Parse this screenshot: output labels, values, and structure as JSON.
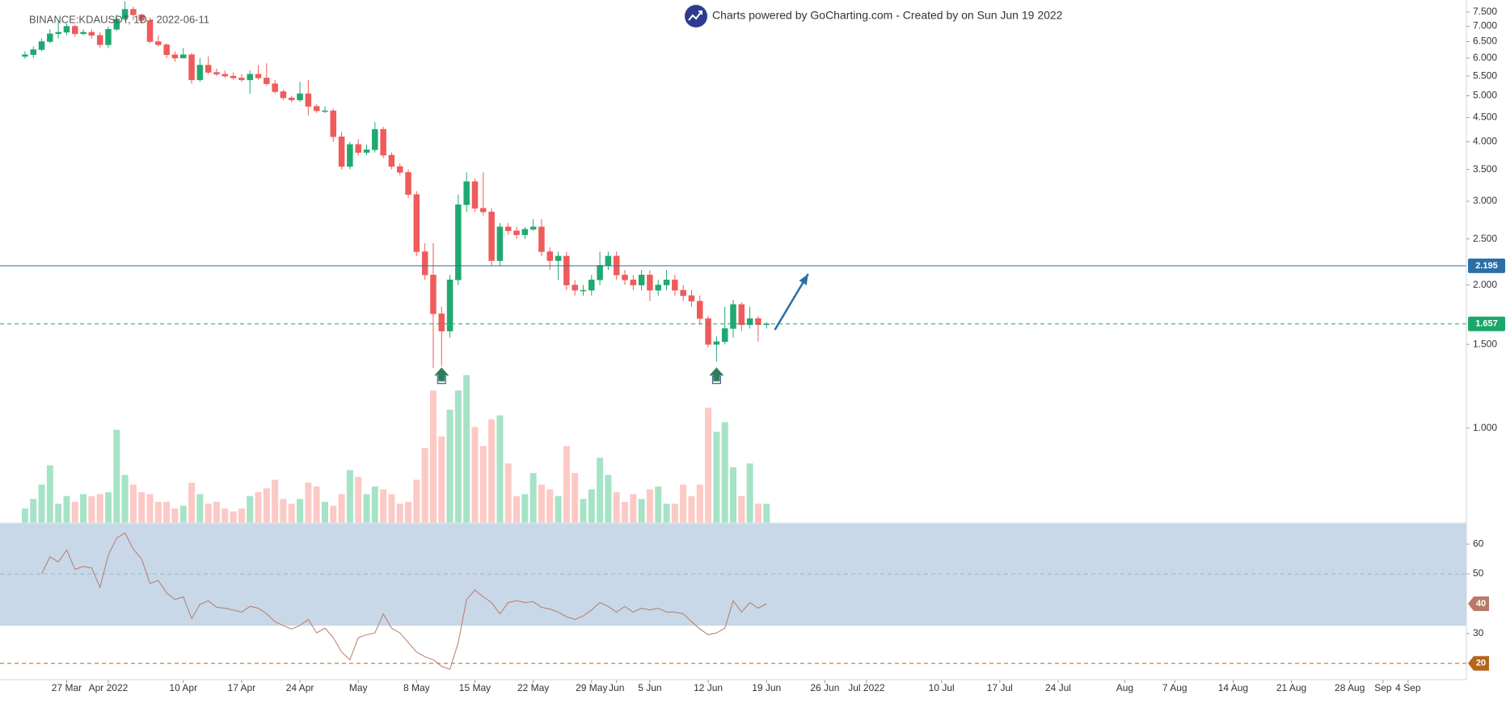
{
  "header": {
    "symbol": "BINANCE:KDAUSDT, 1D - 2022-06-11",
    "credit": "Charts powered by GoCharting.com - Created by  on Sun Jun 19 2022"
  },
  "chart_data": [
    {
      "type": "candlestick",
      "log_scale": true,
      "up_color": "#1fa971",
      "down_color": "#ef5b5b",
      "x": [
        "2022-03-22",
        "2022-03-23",
        "2022-03-24",
        "2022-03-25",
        "2022-03-26",
        "2022-03-27",
        "2022-03-28",
        "2022-03-29",
        "2022-03-30",
        "2022-03-31",
        "2022-04-01",
        "2022-04-02",
        "2022-04-03",
        "2022-04-04",
        "2022-04-05",
        "2022-04-06",
        "2022-04-07",
        "2022-04-08",
        "2022-04-09",
        "2022-04-10",
        "2022-04-11",
        "2022-04-12",
        "2022-04-13",
        "2022-04-14",
        "2022-04-15",
        "2022-04-16",
        "2022-04-17",
        "2022-04-18",
        "2022-04-19",
        "2022-04-20",
        "2022-04-21",
        "2022-04-22",
        "2022-04-23",
        "2022-04-24",
        "2022-04-25",
        "2022-04-26",
        "2022-04-27",
        "2022-04-28",
        "2022-04-29",
        "2022-04-30",
        "2022-05-01",
        "2022-05-02",
        "2022-05-03",
        "2022-05-04",
        "2022-05-05",
        "2022-05-06",
        "2022-05-07",
        "2022-05-08",
        "2022-05-09",
        "2022-05-10",
        "2022-05-11",
        "2022-05-12",
        "2022-05-13",
        "2022-05-14",
        "2022-05-15",
        "2022-05-16",
        "2022-05-17",
        "2022-05-18",
        "2022-05-19",
        "2022-05-20",
        "2022-05-21",
        "2022-05-22",
        "2022-05-23",
        "2022-05-24",
        "2022-05-25",
        "2022-05-26",
        "2022-05-27",
        "2022-05-28",
        "2022-05-29",
        "2022-05-30",
        "2022-05-31",
        "2022-06-01",
        "2022-06-02",
        "2022-06-03",
        "2022-06-04",
        "2022-06-05",
        "2022-06-06",
        "2022-06-07",
        "2022-06-08",
        "2022-06-09",
        "2022-06-10",
        "2022-06-11",
        "2022-06-12",
        "2022-06-13",
        "2022-06-14",
        "2022-06-15",
        "2022-06-16",
        "2022-06-17",
        "2022-06-18",
        "2022-06-19"
      ],
      "open": [
        6.05,
        6.1,
        6.25,
        6.5,
        6.75,
        6.8,
        7.0,
        6.75,
        6.8,
        6.7,
        6.4,
        6.9,
        7.25,
        7.6,
        7.4,
        7.2,
        6.5,
        6.4,
        6.1,
        6.0,
        6.1,
        5.4,
        5.8,
        5.6,
        5.55,
        5.5,
        5.45,
        5.4,
        5.55,
        5.45,
        5.3,
        5.1,
        4.95,
        4.9,
        5.05,
        4.75,
        4.65,
        4.65,
        4.1,
        3.55,
        3.95,
        3.8,
        3.85,
        4.25,
        3.75,
        3.55,
        3.45,
        3.1,
        2.35,
        2.1,
        1.74,
        1.6,
        2.05,
        2.95,
        3.3,
        2.9,
        2.85,
        2.25,
        2.65,
        2.6,
        2.55,
        2.62,
        2.65,
        2.35,
        2.25,
        2.3,
        2.0,
        1.95,
        1.95,
        2.05,
        2.2,
        2.3,
        2.1,
        2.05,
        2.0,
        2.1,
        1.95,
        2.0,
        2.05,
        1.95,
        1.9,
        1.85,
        1.7,
        1.5,
        1.52,
        1.62,
        1.82,
        1.65,
        1.7,
        1.65
      ],
      "high": [
        6.2,
        6.35,
        6.6,
        6.9,
        7.2,
        7.1,
        7.05,
        6.9,
        6.9,
        6.8,
        7.0,
        7.4,
        7.9,
        7.7,
        7.45,
        7.3,
        6.7,
        6.45,
        6.2,
        6.3,
        6.15,
        6.0,
        6.05,
        5.7,
        5.65,
        5.6,
        5.55,
        5.65,
        5.8,
        5.85,
        5.4,
        5.15,
        5.0,
        5.35,
        5.4,
        4.8,
        4.75,
        4.7,
        4.2,
        4.0,
        4.05,
        3.95,
        4.4,
        4.3,
        3.8,
        3.6,
        3.5,
        3.15,
        2.45,
        2.45,
        1.8,
        2.1,
        3.1,
        3.45,
        3.35,
        3.45,
        2.9,
        2.7,
        2.7,
        2.65,
        2.65,
        2.75,
        2.75,
        2.4,
        2.35,
        2.35,
        2.05,
        2.0,
        2.1,
        2.35,
        2.35,
        2.35,
        2.15,
        2.1,
        2.15,
        2.15,
        2.05,
        2.15,
        2.1,
        2.0,
        1.95,
        1.9,
        1.72,
        1.56,
        1.8,
        1.86,
        1.84,
        1.8,
        1.72,
        1.67
      ],
      "low": [
        5.98,
        6.0,
        6.2,
        6.45,
        6.6,
        6.7,
        6.65,
        6.7,
        6.6,
        6.3,
        6.3,
        6.85,
        7.2,
        7.2,
        7.1,
        6.45,
        6.35,
        6.0,
        5.9,
        6.0,
        5.3,
        5.35,
        5.55,
        5.5,
        5.45,
        5.4,
        5.35,
        5.05,
        5.4,
        5.25,
        5.05,
        4.9,
        4.85,
        4.85,
        4.55,
        4.6,
        4.6,
        4.0,
        3.5,
        3.5,
        3.75,
        3.75,
        3.8,
        3.7,
        3.5,
        3.4,
        3.05,
        2.3,
        2.05,
        1.34,
        1.35,
        1.55,
        2.0,
        2.85,
        2.85,
        2.8,
        2.2,
        2.2,
        2.55,
        2.5,
        2.5,
        2.6,
        2.3,
        2.15,
        2.05,
        1.95,
        1.9,
        1.9,
        1.9,
        2.0,
        2.15,
        2.05,
        2.0,
        1.95,
        1.95,
        1.85,
        1.9,
        1.95,
        1.9,
        1.85,
        1.8,
        1.65,
        1.48,
        1.38,
        1.5,
        1.55,
        1.6,
        1.62,
        1.52,
        1.62
      ],
      "close": [
        6.1,
        6.25,
        6.5,
        6.75,
        6.8,
        7.0,
        6.75,
        6.8,
        6.7,
        6.4,
        6.9,
        7.25,
        7.6,
        7.4,
        7.2,
        6.5,
        6.4,
        6.1,
        6.0,
        6.1,
        5.4,
        5.8,
        5.6,
        5.55,
        5.5,
        5.45,
        5.4,
        5.55,
        5.45,
        5.3,
        5.1,
        4.95,
        4.9,
        5.05,
        4.75,
        4.65,
        4.65,
        4.1,
        3.55,
        3.95,
        3.8,
        3.85,
        4.25,
        3.75,
        3.55,
        3.45,
        3.1,
        2.35,
        2.1,
        1.74,
        1.6,
        2.05,
        2.95,
        3.3,
        2.9,
        2.85,
        2.25,
        2.65,
        2.6,
        2.55,
        2.62,
        2.65,
        2.35,
        2.25,
        2.3,
        2.0,
        1.95,
        1.95,
        2.05,
        2.2,
        2.3,
        2.1,
        2.05,
        2.0,
        2.1,
        1.95,
        2.0,
        2.05,
        1.95,
        1.9,
        1.85,
        1.7,
        1.5,
        1.52,
        1.62,
        1.82,
        1.65,
        1.7,
        1.65,
        1.657
      ],
      "ylim": [
        0.632,
        7.95
      ],
      "yticks": [
        {
          "value": 1,
          "label": "1.000"
        },
        {
          "value": 1.5,
          "label": "1.500"
        },
        {
          "value": 2,
          "label": "2.000"
        },
        {
          "value": 2.5,
          "label": "2.500"
        },
        {
          "value": 3,
          "label": "3.000"
        },
        {
          "value": 3.5,
          "label": "3.500"
        },
        {
          "value": 4,
          "label": "4.000"
        },
        {
          "value": 4.5,
          "label": "4.500"
        },
        {
          "value": 5,
          "label": "5.000"
        },
        {
          "value": 5.5,
          "label": "5.500"
        },
        {
          "value": 6,
          "label": "6.000"
        },
        {
          "value": 6.5,
          "label": "6.500"
        },
        {
          "value": 7,
          "label": "7.000"
        },
        {
          "value": 7.5,
          "label": "7.500"
        }
      ],
      "xlim": [
        "2022-03-19",
        "2022-09-11"
      ],
      "xticks": [
        {
          "value": "2022-03-27",
          "label": "27 Mar"
        },
        {
          "value": "2022-04-01",
          "label": "Apr 2022"
        },
        {
          "value": "2022-04-10",
          "label": "10 Apr"
        },
        {
          "value": "2022-04-17",
          "label": "17 Apr"
        },
        {
          "value": "2022-04-24",
          "label": "24 Apr"
        },
        {
          "value": "2022-05-01",
          "label": "May"
        },
        {
          "value": "2022-05-08",
          "label": "8 May"
        },
        {
          "value": "2022-05-15",
          "label": "15 May"
        },
        {
          "value": "2022-05-22",
          "label": "22 May"
        },
        {
          "value": "2022-05-29",
          "label": "29 May"
        },
        {
          "value": "2022-06-01",
          "label": "Jun"
        },
        {
          "value": "2022-06-05",
          "label": "5 Jun"
        },
        {
          "value": "2022-06-12",
          "label": "12 Jun"
        },
        {
          "value": "2022-06-19",
          "label": "19 Jun"
        },
        {
          "value": "2022-06-26",
          "label": "26 Jun"
        },
        {
          "value": "2022-07-01",
          "label": "Jul 2022"
        },
        {
          "value": "2022-07-10",
          "label": "10 Jul"
        },
        {
          "value": "2022-07-17",
          "label": "17 Jul"
        },
        {
          "value": "2022-07-24",
          "label": "24 Jul"
        },
        {
          "value": "2022-08-01",
          "label": "Aug"
        },
        {
          "value": "2022-08-07",
          "label": "7 Aug"
        },
        {
          "value": "2022-08-14",
          "label": "14 Aug"
        },
        {
          "value": "2022-08-21",
          "label": "21 Aug"
        },
        {
          "value": "2022-08-28",
          "label": "28 Aug"
        },
        {
          "value": "2022-09-01",
          "label": "Sep"
        },
        {
          "value": "2022-09-04",
          "label": "4 Sep"
        }
      ],
      "lines": [
        {
          "value": 2.195,
          "color": "#2a6fa8",
          "style": "solid"
        },
        {
          "value": 1.657,
          "color": "#1aa86a",
          "style": "dashed"
        }
      ],
      "signals": [
        {
          "x": "2022-05-11",
          "y": 1.27
        },
        {
          "x": "2022-06-13",
          "y": 1.27
        }
      ],
      "signal_color": "#2e7d5b",
      "arrow": {
        "from": {
          "x": "2022-06-20",
          "y": 1.61
        },
        "to": {
          "x": "2022-06-24",
          "y": 2.11
        },
        "color": "#2a6fa8"
      }
    },
    {
      "type": "bar",
      "up_color": "#a6e3c6",
      "down_color": "#fcc9c5",
      "ylim": [
        0,
        160
      ],
      "values": [
        15,
        25,
        40,
        60,
        20,
        28,
        22,
        30,
        28,
        30,
        32,
        97,
        50,
        40,
        32,
        30,
        22,
        22,
        15,
        18,
        42,
        30,
        20,
        22,
        15,
        12,
        15,
        28,
        32,
        36,
        45,
        25,
        20,
        25,
        42,
        38,
        22,
        18,
        30,
        55,
        48,
        30,
        38,
        35,
        30,
        20,
        22,
        45,
        78,
        138,
        90,
        118,
        138,
        154,
        100,
        80,
        108,
        112,
        62,
        28,
        30,
        52,
        40,
        35,
        28,
        80,
        52,
        25,
        35,
        68,
        50,
        32,
        22,
        30,
        25,
        35,
        38,
        20,
        20,
        40,
        28,
        40,
        120,
        95,
        105,
        58,
        28,
        62,
        20,
        20
      ]
    },
    {
      "type": "line",
      "color": "#b87a68",
      "ylim": [
        14.5,
        67.1
      ],
      "yticks": [
        30,
        50,
        60
      ],
      "band": [
        32.6,
        67.1
      ],
      "band_color": "#c8d8e8",
      "lines": [
        {
          "value": 50,
          "color": "#9fb4ca",
          "style": "dashed"
        },
        {
          "value": 20,
          "color": "#b5651d",
          "style": "dashed"
        }
      ],
      "values": [
        null,
        null,
        50,
        55.7,
        54,
        58,
        51.5,
        52.5,
        52,
        45.5,
        56.4,
        62,
        63.7,
        58.3,
        55,
        46.8,
        47.8,
        43.6,
        41.4,
        42.3,
        35,
        39.8,
        41,
        38.8,
        38.5,
        37.9,
        37.2,
        39.1,
        38.5,
        36.6,
        34,
        32.7,
        31.5,
        32.7,
        34.7,
        30.2,
        31.8,
        28.6,
        23.8,
        21.2,
        28.6,
        29.6,
        30.2,
        36.6,
        31.8,
        30.2,
        27,
        23.8,
        22.2,
        21.2,
        19,
        18,
        27,
        41.4,
        44.6,
        42.3,
        40.4,
        36.6,
        40.4,
        41,
        40.4,
        40.7,
        38.8,
        38.2,
        37.2,
        35.6,
        34.7,
        35.9,
        37.9,
        40.4,
        39.1,
        37.2,
        39.1,
        37.2,
        38.5,
        37.9,
        38.5,
        37.2,
        37.2,
        36.6,
        34,
        31.5,
        29.6,
        30.2,
        31.8,
        41,
        37.2,
        40.4,
        38.5,
        40
      ]
    }
  ]
}
